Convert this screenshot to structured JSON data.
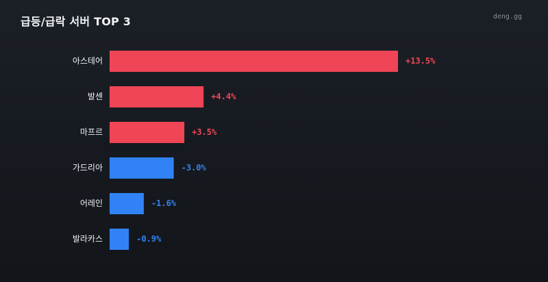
{
  "header": {
    "title": "급등/급락 서버 TOP 3",
    "brand": "deng.gg"
  },
  "colors": {
    "up": "#f04556",
    "down": "#3183f5"
  },
  "chart_data": {
    "type": "bar",
    "orientation": "horizontal",
    "title": "급등/급락 서버 TOP 3",
    "categories": [
      "아스테어",
      "발센",
      "마프르",
      "가드리아",
      "어레인",
      "발라카스"
    ],
    "values": [
      13.5,
      4.4,
      3.5,
      -3.0,
      -1.6,
      -0.9
    ],
    "value_labels": [
      "+13.5%",
      "+4.4%",
      "+3.5%",
      "-3.0%",
      "-1.6%",
      "-0.9%"
    ],
    "bar_length": "absolute value",
    "xlim": [
      0,
      13.5
    ],
    "grid": false,
    "legend": "none"
  }
}
